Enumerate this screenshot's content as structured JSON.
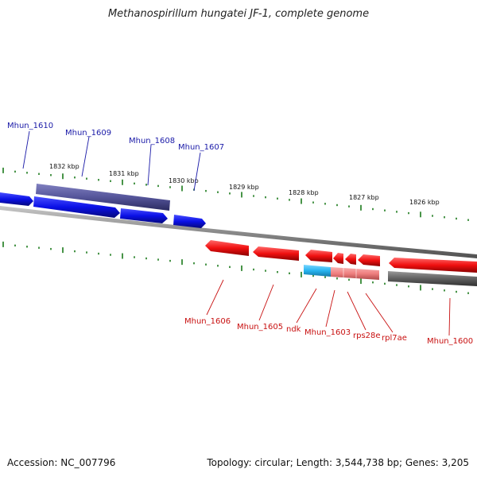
{
  "title": "Methanospirillum hungatei JF-1, complete genome",
  "footer": {
    "accession": "Accession: NC_007796",
    "summary": "Topology: circular; Length: 3,544,738 bp; Genes: 3,205"
  },
  "colors": {
    "forward_cds": "#0a10e6",
    "forward_gene": "#5a5a9a",
    "reverse_cds": "#f01010",
    "reverse_gene": "#606060",
    "rna_light": "#27b4f0",
    "rna_pink": "#f08080",
    "ticks": "#1a7a1a",
    "backbone": "#8a8a8a",
    "forward_label": "#1a1aa8",
    "reverse_label": "#c81010"
  },
  "kbp_ticks": [
    {
      "label": "1832 kbp"
    },
    {
      "label": "1831 kbp"
    },
    {
      "label": "1830 kbp"
    },
    {
      "label": "1829 kbp"
    },
    {
      "label": "1828 kbp"
    },
    {
      "label": "1827 kbp"
    },
    {
      "label": "1826 kbp"
    }
  ],
  "forward_labels": [
    {
      "text": "Mhun_1610"
    },
    {
      "text": "Mhun_1609"
    },
    {
      "text": "Mhun_1608"
    },
    {
      "text": "Mhun_1607"
    }
  ],
  "reverse_labels": [
    {
      "text": "Mhun_1606"
    },
    {
      "text": "Mhun_1605"
    },
    {
      "text": "ndk"
    },
    {
      "text": "Mhun_1603"
    },
    {
      "text": "rps28e"
    },
    {
      "text": "rpl7ae"
    },
    {
      "text": "Mhun_1600"
    }
  ]
}
